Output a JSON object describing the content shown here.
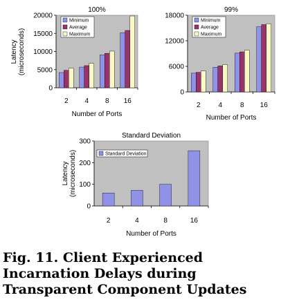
{
  "chart_data": [
    {
      "type": "bar",
      "title": "100%",
      "xlabel": "Number of Ports",
      "ylabel": "Latency\n(microseconds)",
      "categories": [
        "2",
        "4",
        "8",
        "16"
      ],
      "ylim": [
        0,
        20000
      ],
      "yticks": [
        "0",
        "5000",
        "10000",
        "15000",
        "20000"
      ],
      "ytick_values": [
        0,
        5000,
        10000,
        15000,
        20000
      ],
      "grid": false,
      "legend_position": "top-left",
      "series": [
        {
          "name": "Minimum",
          "color": "#8f92e6",
          "values": [
            4200,
            5700,
            9100,
            15200
          ]
        },
        {
          "name": "Average",
          "color": "#99336a",
          "values": [
            4800,
            6100,
            9500,
            15800
          ]
        },
        {
          "name": "Maximum",
          "color": "#fbf8c6",
          "values": [
            5400,
            6700,
            10100,
            19800
          ]
        }
      ]
    },
    {
      "type": "bar",
      "title": "99%",
      "xlabel": "Number of Ports",
      "ylabel": "",
      "categories": [
        "2",
        "4",
        "8",
        "16"
      ],
      "ylim": [
        0,
        18000
      ],
      "yticks": [
        "0",
        "6000",
        "12000",
        "18000"
      ],
      "ytick_values": [
        0,
        6000,
        12000,
        18000
      ],
      "grid": false,
      "legend_position": "top-left",
      "series": [
        {
          "name": "Minimum",
          "color": "#8f92e6",
          "values": [
            4400,
            5800,
            9100,
            15300
          ]
        },
        {
          "name": "Average",
          "color": "#99336a",
          "values": [
            4600,
            6100,
            9400,
            15800
          ]
        },
        {
          "name": "Maximum",
          "color": "#fbf8c6",
          "values": [
            4900,
            6400,
            9800,
            16000
          ]
        }
      ]
    },
    {
      "type": "bar",
      "title": "Standard Deviation",
      "xlabel": "Number of Ports",
      "ylabel": "Latency\n(microseconds)",
      "categories": [
        "2",
        "4",
        "8",
        "16"
      ],
      "ylim": [
        0,
        300
      ],
      "yticks": [
        "0",
        "100",
        "200",
        "300"
      ],
      "ytick_values": [
        0,
        100,
        200,
        300
      ],
      "grid": false,
      "legend_position": "top-left",
      "series": [
        {
          "name": "Standard Deviation",
          "color": "#8f92e6",
          "values": [
            60,
            72,
            100,
            255
          ]
        }
      ]
    }
  ],
  "caption": {
    "label": "Fig. 11.",
    "text": "Client Experienced Incarnation Delays during Transparent Component Updates"
  }
}
